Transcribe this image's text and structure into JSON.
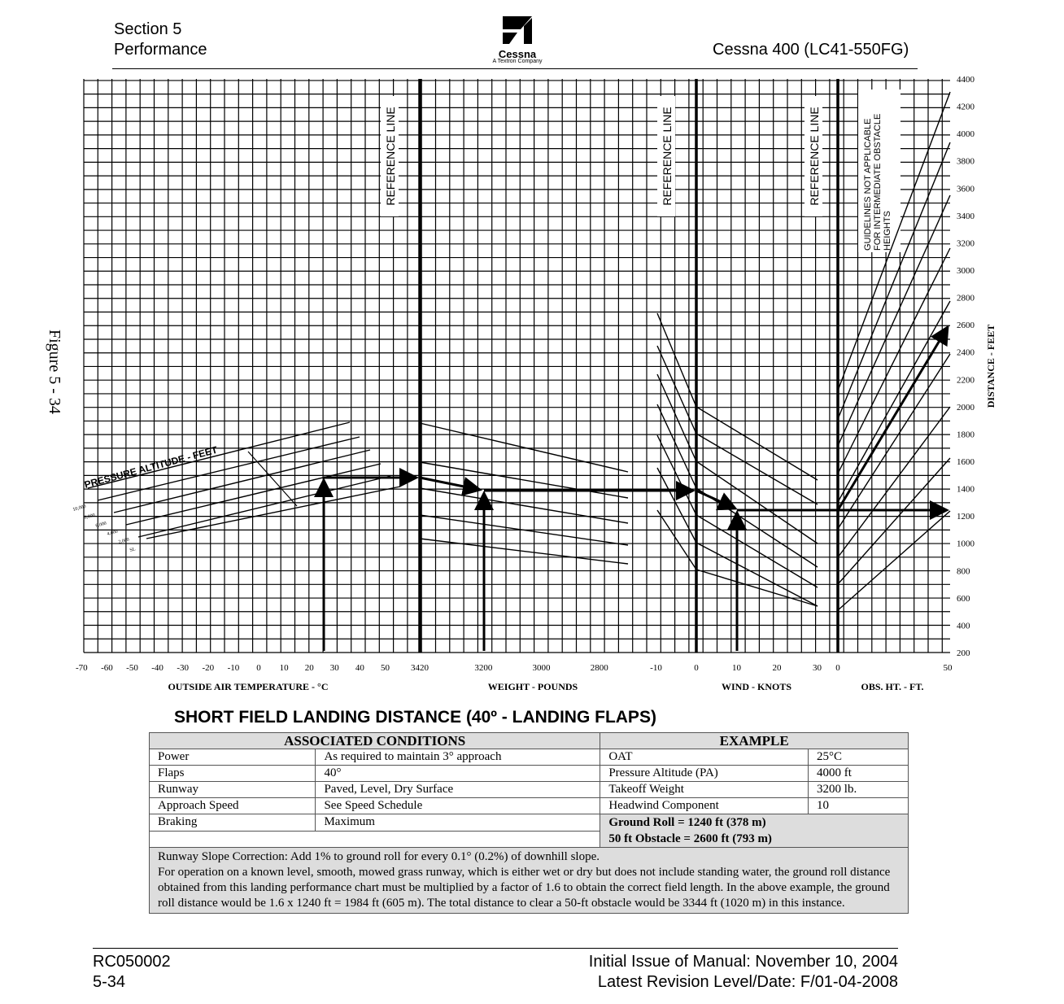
{
  "header": {
    "section": "Section 5",
    "subsection": "Performance",
    "logo": "Cessna",
    "logo_sub": "A Textron Company",
    "model": "Cessna 400 (LC41-550FG)"
  },
  "side_label": "Figure 5 - 34",
  "chart": {
    "oat_ticks": [
      -70,
      -60,
      -50,
      -40,
      -30,
      -20,
      -10,
      0,
      10,
      20,
      30,
      40,
      50
    ],
    "weight_ticks": [
      3420,
      3200,
      3000,
      2800
    ],
    "wind_ticks": [
      -10,
      0,
      10,
      20,
      30
    ],
    "obs_ticks": [
      0,
      50
    ],
    "distance_ticks": [
      200,
      400,
      600,
      800,
      1000,
      1200,
      1400,
      1600,
      1800,
      2000,
      2200,
      2400,
      2600,
      2800,
      3000,
      3200,
      3400,
      3600,
      3800,
      4000,
      4200,
      4400
    ],
    "oat_title": "OUTSIDE AIR TEMPERATURE - °C",
    "weight_title": "WEIGHT - POUNDS",
    "wind_title": "WIND - KNOTS",
    "obs_title": "OBS. HT. - FT.",
    "distance_title": "DISTANCE - FEET",
    "reference_lines": [
      "REFERENCE LINE",
      "REFERENCE LINE",
      "REFERENCE LINE"
    ],
    "guideline_note": [
      "GUIDELINES NOT APPLICABLE",
      "FOR INTERMEDIATE OBSTACLE",
      "HEIGHTS"
    ],
    "altitude_title": "PRESSURE ALTITUDE - FEET",
    "altitudes": [
      "10,000",
      "8,000",
      "6,000",
      "4,000",
      "2,000",
      "SL"
    ]
  },
  "title": "SHORT FIELD LANDING DISTANCE (40º - LANDING FLAPS)",
  "table": {
    "left_header": "ASSOCIATED CONDITIONS",
    "right_header": "EXAMPLE",
    "conditions": [
      [
        "Power",
        "As required to maintain 3° approach"
      ],
      [
        "Flaps",
        "40°"
      ],
      [
        "Runway",
        "Paved, Level, Dry Surface"
      ],
      [
        "Approach Speed",
        "See Speed Schedule"
      ],
      [
        "Braking",
        "Maximum"
      ]
    ],
    "example": [
      [
        "OAT",
        "25°C"
      ],
      [
        "Pressure Altitude (PA)",
        "4000 ft"
      ],
      [
        "Takeoff Weight",
        "3200 lb."
      ],
      [
        "Headwind Component",
        "10"
      ]
    ],
    "results": [
      "Ground Roll =  1240 ft (378 m)",
      "50 ft Obstacle = 2600 ft (793 m)"
    ],
    "notes": [
      "Runway Slope Correction: Add 1% to ground roll for every 0.1° (0.2%) of downhill slope.",
      "For operation on a known level, smooth, mowed grass runway, which is either wet or dry but does not include standing water, the ground roll distance obtained from this landing performance chart must be multiplied by a factor of 1.6 to obtain the correct field length. In the above example, the ground roll distance would be 1.6 x 1240 ft = 1984 ft (605 m). The total distance to clear a 50-ft obstacle would be 3344 ft (1020 m) in this instance."
    ]
  },
  "footer": {
    "doc": "RC050002",
    "page": "5-34",
    "issue": "Initial Issue of Manual: November 10, 2004",
    "revision": "Latest Revision Level/Date: F/01-04-2008"
  }
}
